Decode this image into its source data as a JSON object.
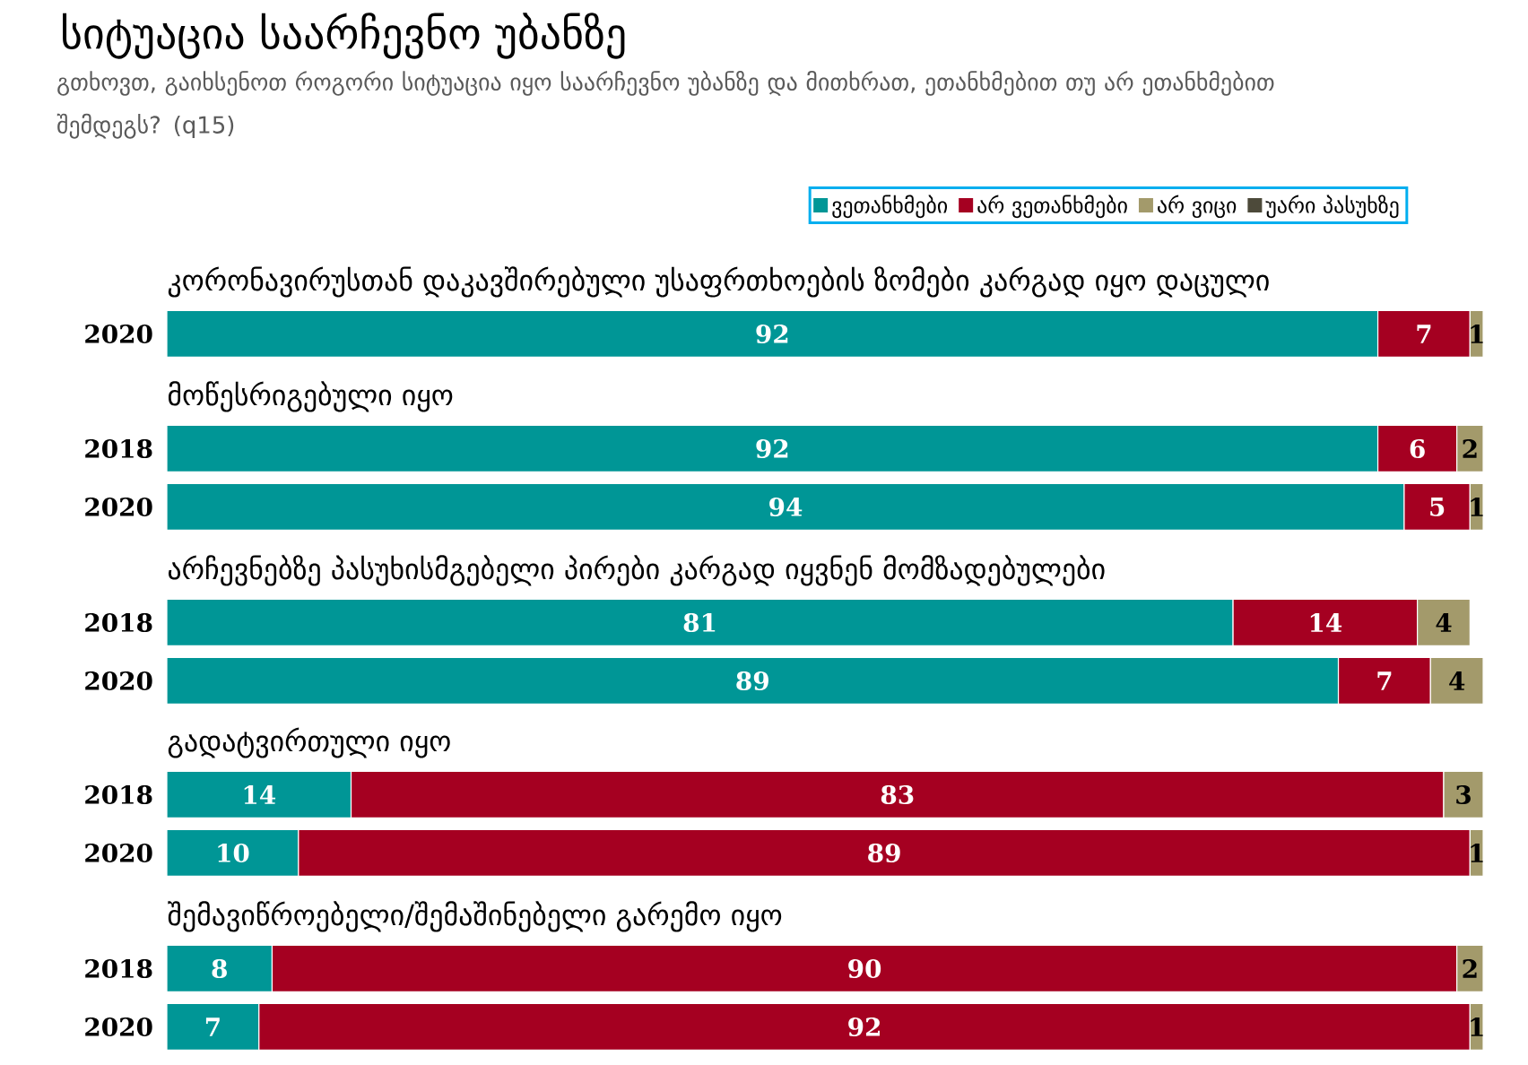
{
  "chart_data": [
    {
      "type": "bar",
      "orientation": "horizontal",
      "stacked": true,
      "data_labels": true,
      "legend": "top right",
      "tick_labels": "y",
      "title": "სიტუაცია საარჩევნო უბანზე",
      "subtitle": "გთხოვთ, გაიხსენოთ როგორი სიტუაცია იყო საარჩევნო უბანზე და მითხრათ, ეთანხმებით თუ არ ეთანხმებით შემდეგს? (q15)",
      "categories": [
        "2020"
      ],
      "series": [
        {
          "name": "ვეთანხმები",
          "color": "#009696",
          "values": [
            92
          ]
        },
        {
          "name": "არ ვეთანხმები",
          "color": "#a50021",
          "values": [
            7
          ]
        },
        {
          "name": "არ ვიცი",
          "color": "#a39a6b",
          "values": [
            1
          ]
        },
        {
          "name": "უარი პასუხზე",
          "color": "#4d4a3a",
          "values": [
            null
          ]
        }
      ],
      "annotations": [
        "კორონავირუსთან დაკავშირებული უსაფრთხოების ზომები კარგად იყო დაცული"
      ]
    },
    {
      "type": "bar",
      "orientation": "horizontal",
      "stacked": true,
      "data_labels": true,
      "tick_labels": "y",
      "categories": [
        "2018",
        "2020"
      ],
      "series": [
        {
          "color": "#009696",
          "values": [
            92,
            94
          ]
        },
        {
          "color": "#a50021",
          "values": [
            6,
            5
          ]
        },
        {
          "color": "#a39a6b",
          "values": [
            2,
            1
          ]
        }
      ],
      "annotations": [
        "მოწესრიგებული იყო"
      ]
    },
    {
      "type": "bar",
      "orientation": "horizontal",
      "stacked": true,
      "data_labels": true,
      "tick_labels": "y",
      "categories": [
        "2018",
        "2020"
      ],
      "series": [
        {
          "color": "#009696",
          "values": [
            81,
            89
          ]
        },
        {
          "color": "#a50021",
          "values": [
            14,
            7
          ]
        },
        {
          "color": "#a39a6b",
          "values": [
            4,
            4
          ]
        }
      ],
      "annotations": [
        "არჩევნებზე პასუხისმგებელი პირები კარგად იყვნენ მომზადებულები"
      ]
    },
    {
      "type": "bar",
      "orientation": "horizontal",
      "stacked": true,
      "data_labels": true,
      "tick_labels": "y",
      "categories": [
        "2018",
        "2020"
      ],
      "series": [
        {
          "color": "#009696",
          "values": [
            14,
            10
          ]
        },
        {
          "color": "#a50021",
          "values": [
            83,
            89
          ]
        },
        {
          "color": "#a39a6b",
          "values": [
            3,
            1
          ]
        }
      ],
      "annotations": [
        "გადატვირთული იყო"
      ]
    },
    {
      "type": "bar",
      "orientation": "horizontal",
      "stacked": true,
      "data_labels": true,
      "tick_labels": "y",
      "categories": [
        "2018",
        "2020"
      ],
      "series": [
        {
          "color": "#009696",
          "values": [
            8,
            7
          ]
        },
        {
          "color": "#a50021",
          "values": [
            90,
            92
          ]
        },
        {
          "color": "#a39a6b",
          "values": [
            2,
            1
          ]
        }
      ],
      "annotations": [
        "შემავიწროებელი/შემაშინებელი გარემო იყო"
      ]
    }
  ]
}
